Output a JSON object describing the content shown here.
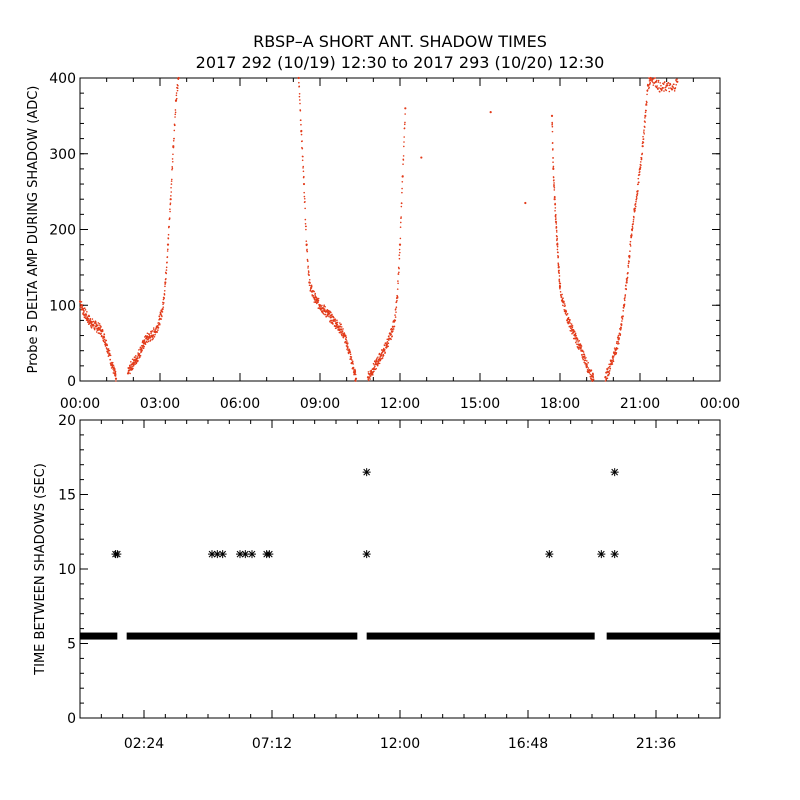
{
  "figure": {
    "title_line1": "RBSP–A SHORT ANT. SHADOW TIMES",
    "title_line2": "2017 292 (10/19) 12:30 to 2017 293 (10/20) 12:30"
  },
  "colors": {
    "top_series": "#e23b1a",
    "bottom_series": "#000000",
    "axis": "#000000"
  },
  "chart_data": [
    {
      "type": "scatter",
      "title": "",
      "xlabel": "",
      "ylabel": "Probe 5 DELTA AMP DURING SHADOW (ADC)",
      "xlim": [
        0,
        24
      ],
      "ylim": [
        0,
        400
      ],
      "x_ticks": [
        0,
        3,
        6,
        9,
        12,
        15,
        18,
        21,
        24
      ],
      "x_tick_labels": [
        "00:00",
        "03:00",
        "06:00",
        "09:00",
        "12:00",
        "15:00",
        "18:00",
        "21:00",
        "00:00"
      ],
      "y_ticks": [
        0,
        100,
        200,
        300,
        400
      ],
      "y_tick_labels": [
        "0",
        "100",
        "200",
        "300",
        "400"
      ],
      "series": [
        {
          "name": "Probe 5 delta amp",
          "note": "approximate envelope of dense red dot scatter (hours, ADC)",
          "points": [
            [
              0.0,
              105
            ],
            [
              0.1,
              95
            ],
            [
              0.2,
              88
            ],
            [
              0.3,
              82
            ],
            [
              0.4,
              78
            ],
            [
              0.5,
              74
            ],
            [
              0.6,
              72
            ],
            [
              0.7,
              70
            ],
            [
              0.8,
              66
            ],
            [
              0.9,
              58
            ],
            [
              1.0,
              48
            ],
            [
              1.1,
              35
            ],
            [
              1.2,
              22
            ],
            [
              1.3,
              10
            ],
            [
              1.35,
              3
            ],
            [
              1.8,
              10
            ],
            [
              1.9,
              18
            ],
            [
              2.0,
              24
            ],
            [
              2.1,
              28
            ],
            [
              2.2,
              35
            ],
            [
              2.3,
              42
            ],
            [
              2.4,
              50
            ],
            [
              2.5,
              56
            ],
            [
              2.6,
              58
            ],
            [
              2.7,
              60
            ],
            [
              2.8,
              65
            ],
            [
              2.9,
              72
            ],
            [
              3.0,
              82
            ],
            [
              3.1,
              95
            ],
            [
              3.2,
              130
            ],
            [
              3.3,
              180
            ],
            [
              3.4,
              240
            ],
            [
              3.5,
              310
            ],
            [
              3.6,
              370
            ],
            [
              3.7,
              400
            ],
            [
              8.2,
              400
            ],
            [
              8.3,
              330
            ],
            [
              8.4,
              260
            ],
            [
              8.5,
              180
            ],
            [
              8.6,
              130
            ],
            [
              8.7,
              118
            ],
            [
              8.8,
              110
            ],
            [
              8.9,
              104
            ],
            [
              9.0,
              100
            ],
            [
              9.1,
              96
            ],
            [
              9.2,
              92
            ],
            [
              9.3,
              88
            ],
            [
              9.4,
              84
            ],
            [
              9.5,
              80
            ],
            [
              9.6,
              76
            ],
            [
              9.7,
              72
            ],
            [
              9.8,
              68
            ],
            [
              9.9,
              60
            ],
            [
              10.0,
              50
            ],
            [
              10.1,
              38
            ],
            [
              10.2,
              24
            ],
            [
              10.3,
              10
            ],
            [
              10.35,
              3
            ],
            [
              10.8,
              5
            ],
            [
              10.9,
              10
            ],
            [
              11.0,
              16
            ],
            [
              11.1,
              22
            ],
            [
              11.2,
              28
            ],
            [
              11.3,
              34
            ],
            [
              11.4,
              40
            ],
            [
              11.5,
              48
            ],
            [
              11.6,
              56
            ],
            [
              11.7,
              65
            ],
            [
              11.8,
              80
            ],
            [
              11.9,
              110
            ],
            [
              12.0,
              180
            ],
            [
              12.1,
              270
            ],
            [
              12.2,
              360
            ],
            [
              12.8,
              295
            ],
            [
              15.4,
              355
            ],
            [
              16.7,
              235
            ],
            [
              17.7,
              350
            ],
            [
              17.75,
              280
            ],
            [
              17.8,
              240
            ],
            [
              17.85,
              210
            ],
            [
              17.9,
              180
            ],
            [
              17.95,
              150
            ],
            [
              18.0,
              125
            ],
            [
              18.1,
              105
            ],
            [
              18.2,
              92
            ],
            [
              18.3,
              82
            ],
            [
              18.4,
              72
            ],
            [
              18.5,
              64
            ],
            [
              18.6,
              56
            ],
            [
              18.7,
              48
            ],
            [
              18.8,
              40
            ],
            [
              18.9,
              32
            ],
            [
              19.0,
              22
            ],
            [
              19.1,
              14
            ],
            [
              19.2,
              6
            ],
            [
              19.25,
              2
            ],
            [
              19.7,
              5
            ],
            [
              19.8,
              12
            ],
            [
              19.9,
              22
            ],
            [
              20.0,
              32
            ],
            [
              20.1,
              42
            ],
            [
              20.2,
              55
            ],
            [
              20.3,
              75
            ],
            [
              20.4,
              100
            ],
            [
              20.5,
              130
            ],
            [
              20.6,
              165
            ],
            [
              20.7,
              200
            ],
            [
              20.8,
              225
            ],
            [
              20.9,
              250
            ],
            [
              21.0,
              280
            ],
            [
              21.1,
              310
            ],
            [
              21.2,
              350
            ],
            [
              21.3,
              390
            ],
            [
              21.4,
              400
            ],
            [
              21.6,
              395
            ],
            [
              21.8,
              385
            ],
            [
              22.0,
              390
            ],
            [
              22.2,
              385
            ],
            [
              22.4,
              395
            ]
          ]
        }
      ]
    },
    {
      "type": "scatter",
      "title": "",
      "xlabel": "",
      "ylabel": "TIME BETWEEN SHADOWS (SEC)",
      "xlim": [
        0,
        24
      ],
      "ylim": [
        0,
        20
      ],
      "x_ticks": [
        2.4,
        7.2,
        12.0,
        16.8,
        21.6
      ],
      "x_tick_labels": [
        "02:24",
        "07:12",
        "12:00",
        "16:48",
        "21:36"
      ],
      "y_ticks": [
        0,
        5,
        10,
        15,
        20
      ],
      "y_tick_labels": [
        "0",
        "5",
        "10",
        "15",
        "20"
      ],
      "series": [
        {
          "name": "Time between shadows",
          "marker": "asterisk",
          "baseline_value": 5.5,
          "baseline_segments": [
            [
              0.0,
              1.4
            ],
            [
              1.75,
              10.4
            ],
            [
              10.75,
              19.3
            ],
            [
              19.75,
              24.0
            ]
          ],
          "outliers": [
            [
              1.33,
              11.0
            ],
            [
              1.4,
              11.0
            ],
            [
              4.95,
              11.0
            ],
            [
              5.15,
              11.0
            ],
            [
              5.35,
              11.0
            ],
            [
              6.0,
              11.0
            ],
            [
              6.2,
              11.0
            ],
            [
              6.45,
              11.0
            ],
            [
              7.0,
              11.0
            ],
            [
              7.1,
              11.0
            ],
            [
              10.75,
              16.5
            ],
            [
              10.75,
              11.0
            ],
            [
              17.6,
              11.0
            ],
            [
              19.55,
              11.0
            ],
            [
              20.05,
              11.0
            ],
            [
              20.05,
              16.5
            ]
          ]
        }
      ]
    }
  ]
}
